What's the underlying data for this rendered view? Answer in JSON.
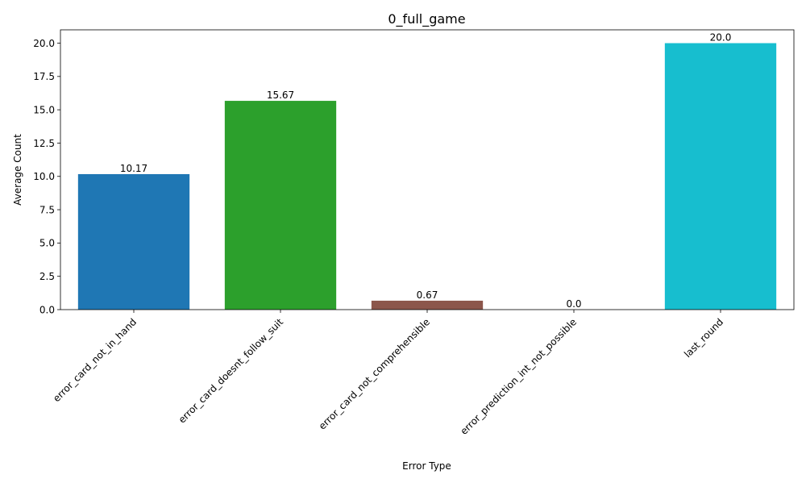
{
  "chart_data": {
    "type": "bar",
    "title": "0_full_game",
    "xlabel": "Error Type",
    "ylabel": "Average Count",
    "categories": [
      "error_card_not_in_hand",
      "error_card_doesnt_follow_suit",
      "error_card_not_comprehensible",
      "error_prediction_int_not_possible",
      "last_round"
    ],
    "values": [
      10.17,
      15.67,
      0.67,
      0.0,
      20.0
    ],
    "value_labels": [
      "10.17",
      "15.67",
      "0.67",
      "0.0",
      "20.0"
    ],
    "colors": [
      "#1f77b4",
      "#2ca02c",
      "#8c564b",
      "#e377c2",
      "#17becf"
    ],
    "ylim": [
      0,
      21
    ],
    "yticks": [
      0.0,
      2.5,
      5.0,
      7.5,
      10.0,
      12.5,
      15.0,
      17.5,
      20.0
    ],
    "ytick_labels": [
      "0.0",
      "2.5",
      "5.0",
      "7.5",
      "10.0",
      "12.5",
      "15.0",
      "17.5",
      "20.0"
    ],
    "grid": false,
    "legend": "none"
  }
}
